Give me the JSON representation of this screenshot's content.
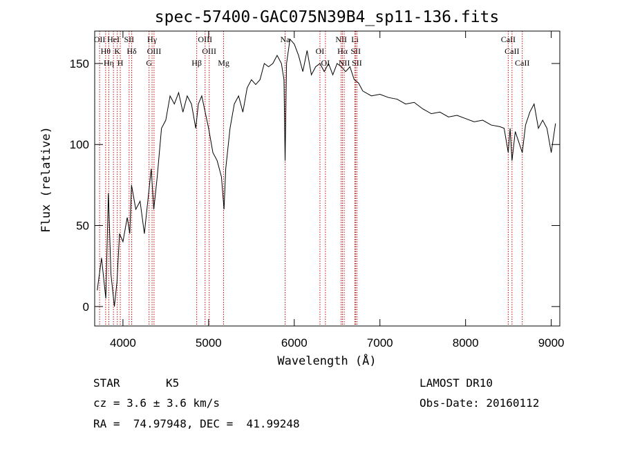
{
  "chart_data": {
    "type": "line",
    "title": "spec-57400-GAC075N39B4_sp11-136.fits",
    "x_label": "Wavelength (Å)",
    "y_label": "Flux (relative)",
    "color": "#000000",
    "line_color": "#cc0000",
    "x": [
      3700,
      3750,
      3800,
      3830,
      3860,
      3900,
      3930,
      3960,
      4000,
      4050,
      4080,
      4100,
      4150,
      4200,
      4250,
      4300,
      4330,
      4360,
      4400,
      4450,
      4500,
      4550,
      4600,
      4650,
      4700,
      4750,
      4800,
      4850,
      4880,
      4920,
      4960,
      5000,
      5050,
      5100,
      5150,
      5180,
      5200,
      5250,
      5300,
      5350,
      5400,
      5450,
      5500,
      5550,
      5600,
      5650,
      5700,
      5750,
      5800,
      5850,
      5880,
      5893,
      5910,
      5950,
      6000,
      6050,
      6100,
      6150,
      6200,
      6250,
      6300,
      6350,
      6400,
      6450,
      6500,
      6550,
      6600,
      6650,
      6700,
      6750,
      6800,
      6900,
      7000,
      7100,
      7200,
      7300,
      7400,
      7500,
      7600,
      7700,
      7800,
      7900,
      8000,
      8100,
      8200,
      8300,
      8400,
      8450,
      8498,
      8520,
      8542,
      8580,
      8662,
      8700,
      8750,
      8800,
      8850,
      8900,
      8950,
      9000,
      9050
    ],
    "values": [
      10,
      30,
      5,
      70,
      20,
      0,
      15,
      45,
      40,
      55,
      45,
      75,
      60,
      65,
      45,
      70,
      85,
      60,
      80,
      110,
      115,
      130,
      125,
      132,
      120,
      130,
      125,
      110,
      125,
      130,
      120,
      110,
      95,
      90,
      80,
      60,
      85,
      110,
      125,
      130,
      120,
      135,
      140,
      137,
      140,
      150,
      148,
      150,
      155,
      150,
      140,
      90,
      150,
      165,
      162,
      155,
      145,
      158,
      143,
      148,
      150,
      145,
      150,
      143,
      150,
      148,
      145,
      148,
      140,
      138,
      133,
      130,
      131,
      129,
      128,
      125,
      126,
      122,
      119,
      120,
      117,
      118,
      116,
      114,
      115,
      112,
      111,
      110,
      95,
      110,
      90,
      108,
      95,
      112,
      120,
      125,
      110,
      115,
      110,
      95,
      113
    ],
    "xlim": [
      3670,
      9100
    ],
    "ylim": [
      -12,
      170
    ],
    "xticks": [
      4000,
      5000,
      6000,
      7000,
      8000,
      9000
    ],
    "yticks": [
      0,
      50,
      100,
      150
    ],
    "spectral_lines": [
      {
        "label": "OII",
        "wavelength": 3727
      },
      {
        "label": "Hθ",
        "wavelength": 3798
      },
      {
        "label": "Hη",
        "wavelength": 3835
      },
      {
        "label": "HeI",
        "wavelength": 3889
      },
      {
        "label": "K",
        "wavelength": 3934
      },
      {
        "label": "H",
        "wavelength": 3969
      },
      {
        "label": "SII",
        "wavelength": 4072
      },
      {
        "label": "Hδ",
        "wavelength": 4102
      },
      {
        "label": "G",
        "wavelength": 4305
      },
      {
        "label": "Hγ",
        "wavelength": 4340
      },
      {
        "label": "OIII",
        "wavelength": 4363
      },
      {
        "label": "Hβ",
        "wavelength": 4861
      },
      {
        "label": "OIII",
        "wavelength": 4959
      },
      {
        "label": "OIII",
        "wavelength": 5007
      },
      {
        "label": "Mg",
        "wavelength": 5175
      },
      {
        "label": "Na",
        "wavelength": 5893
      },
      {
        "label": "OI",
        "wavelength": 6300
      },
      {
        "label": "OI",
        "wavelength": 6364
      },
      {
        "label": "NII",
        "wavelength": 6548
      },
      {
        "label": "Hα",
        "wavelength": 6563
      },
      {
        "label": "NII",
        "wavelength": 6583
      },
      {
        "label": "Li",
        "wavelength": 6708
      },
      {
        "label": "SII",
        "wavelength": 6717
      },
      {
        "label": "SII",
        "wavelength": 6731
      },
      {
        "label": "CaII",
        "wavelength": 8498
      },
      {
        "label": "CaII",
        "wavelength": 8542
      },
      {
        "label": "CaII",
        "wavelength": 8662
      }
    ],
    "footer": {
      "class": "STAR",
      "subclass": "K5",
      "survey": "LAMOST DR10",
      "cz": "cz = 3.6 ± 3.6 km/s",
      "obs_date": "Obs-Date: 20160112",
      "coords": "RA =  74.97948, DEC =  41.99248"
    }
  }
}
